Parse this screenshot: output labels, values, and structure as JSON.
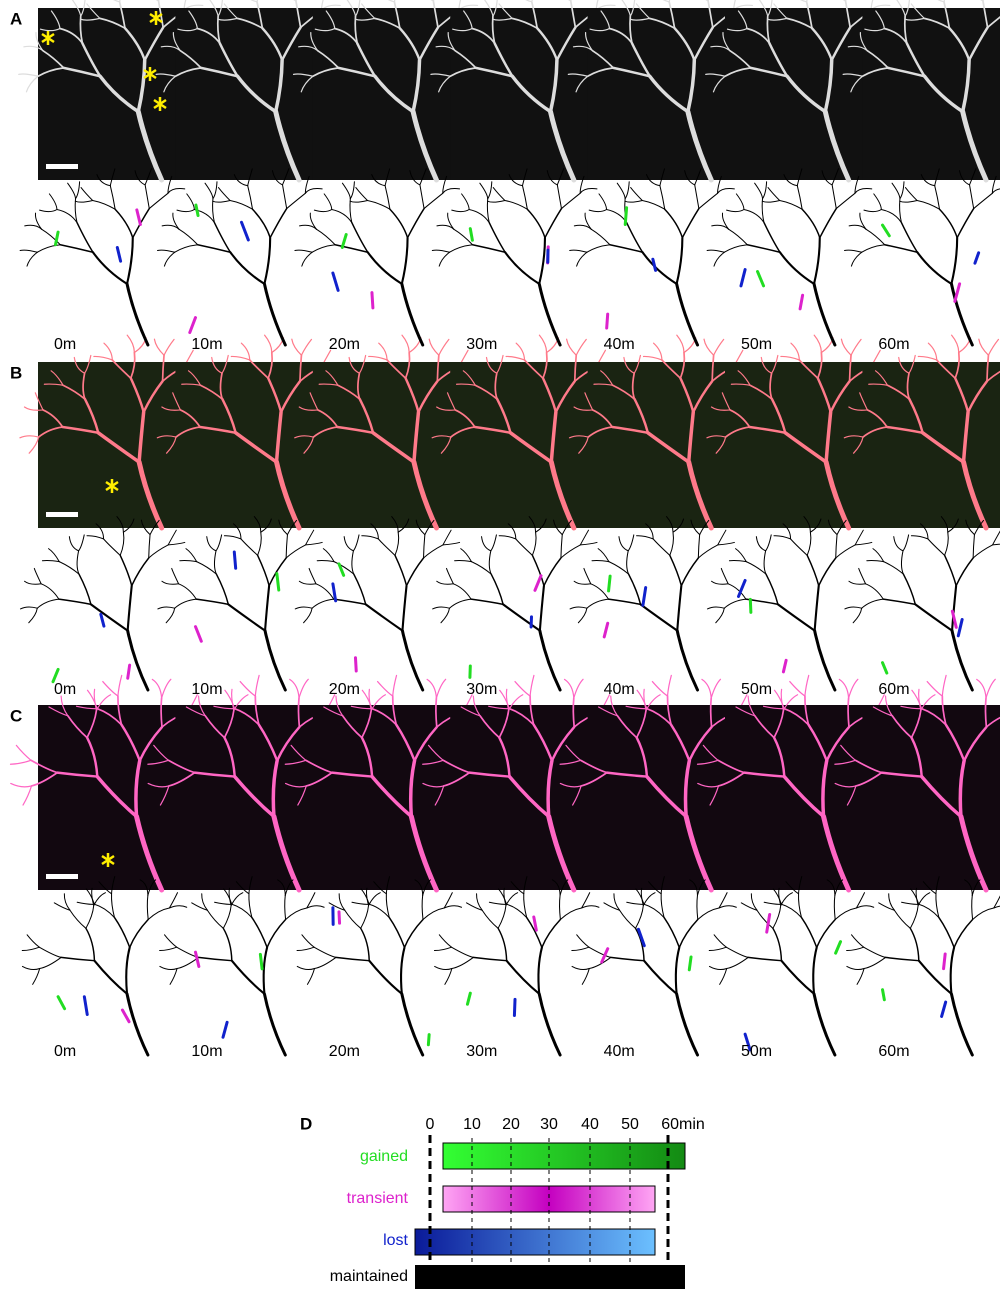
{
  "panels": [
    {
      "label": "A",
      "time_labels": [
        "0m",
        "10m",
        "20m",
        "30m",
        "40m",
        "50m",
        "60m"
      ]
    },
    {
      "label": "B",
      "time_labels": [
        "0m",
        "10m",
        "20m",
        "30m",
        "40m",
        "50m",
        "60m"
      ]
    },
    {
      "label": "C",
      "time_labels": [
        "0m",
        "10m",
        "20m",
        "30m",
        "40m",
        "50m",
        "60m"
      ]
    }
  ],
  "legend": {
    "label": "D",
    "axis_labels": [
      "0",
      "10",
      "20",
      "30",
      "40",
      "50",
      "60min"
    ],
    "rows": [
      "gained",
      "transient",
      "lost",
      "maintained"
    ]
  }
}
